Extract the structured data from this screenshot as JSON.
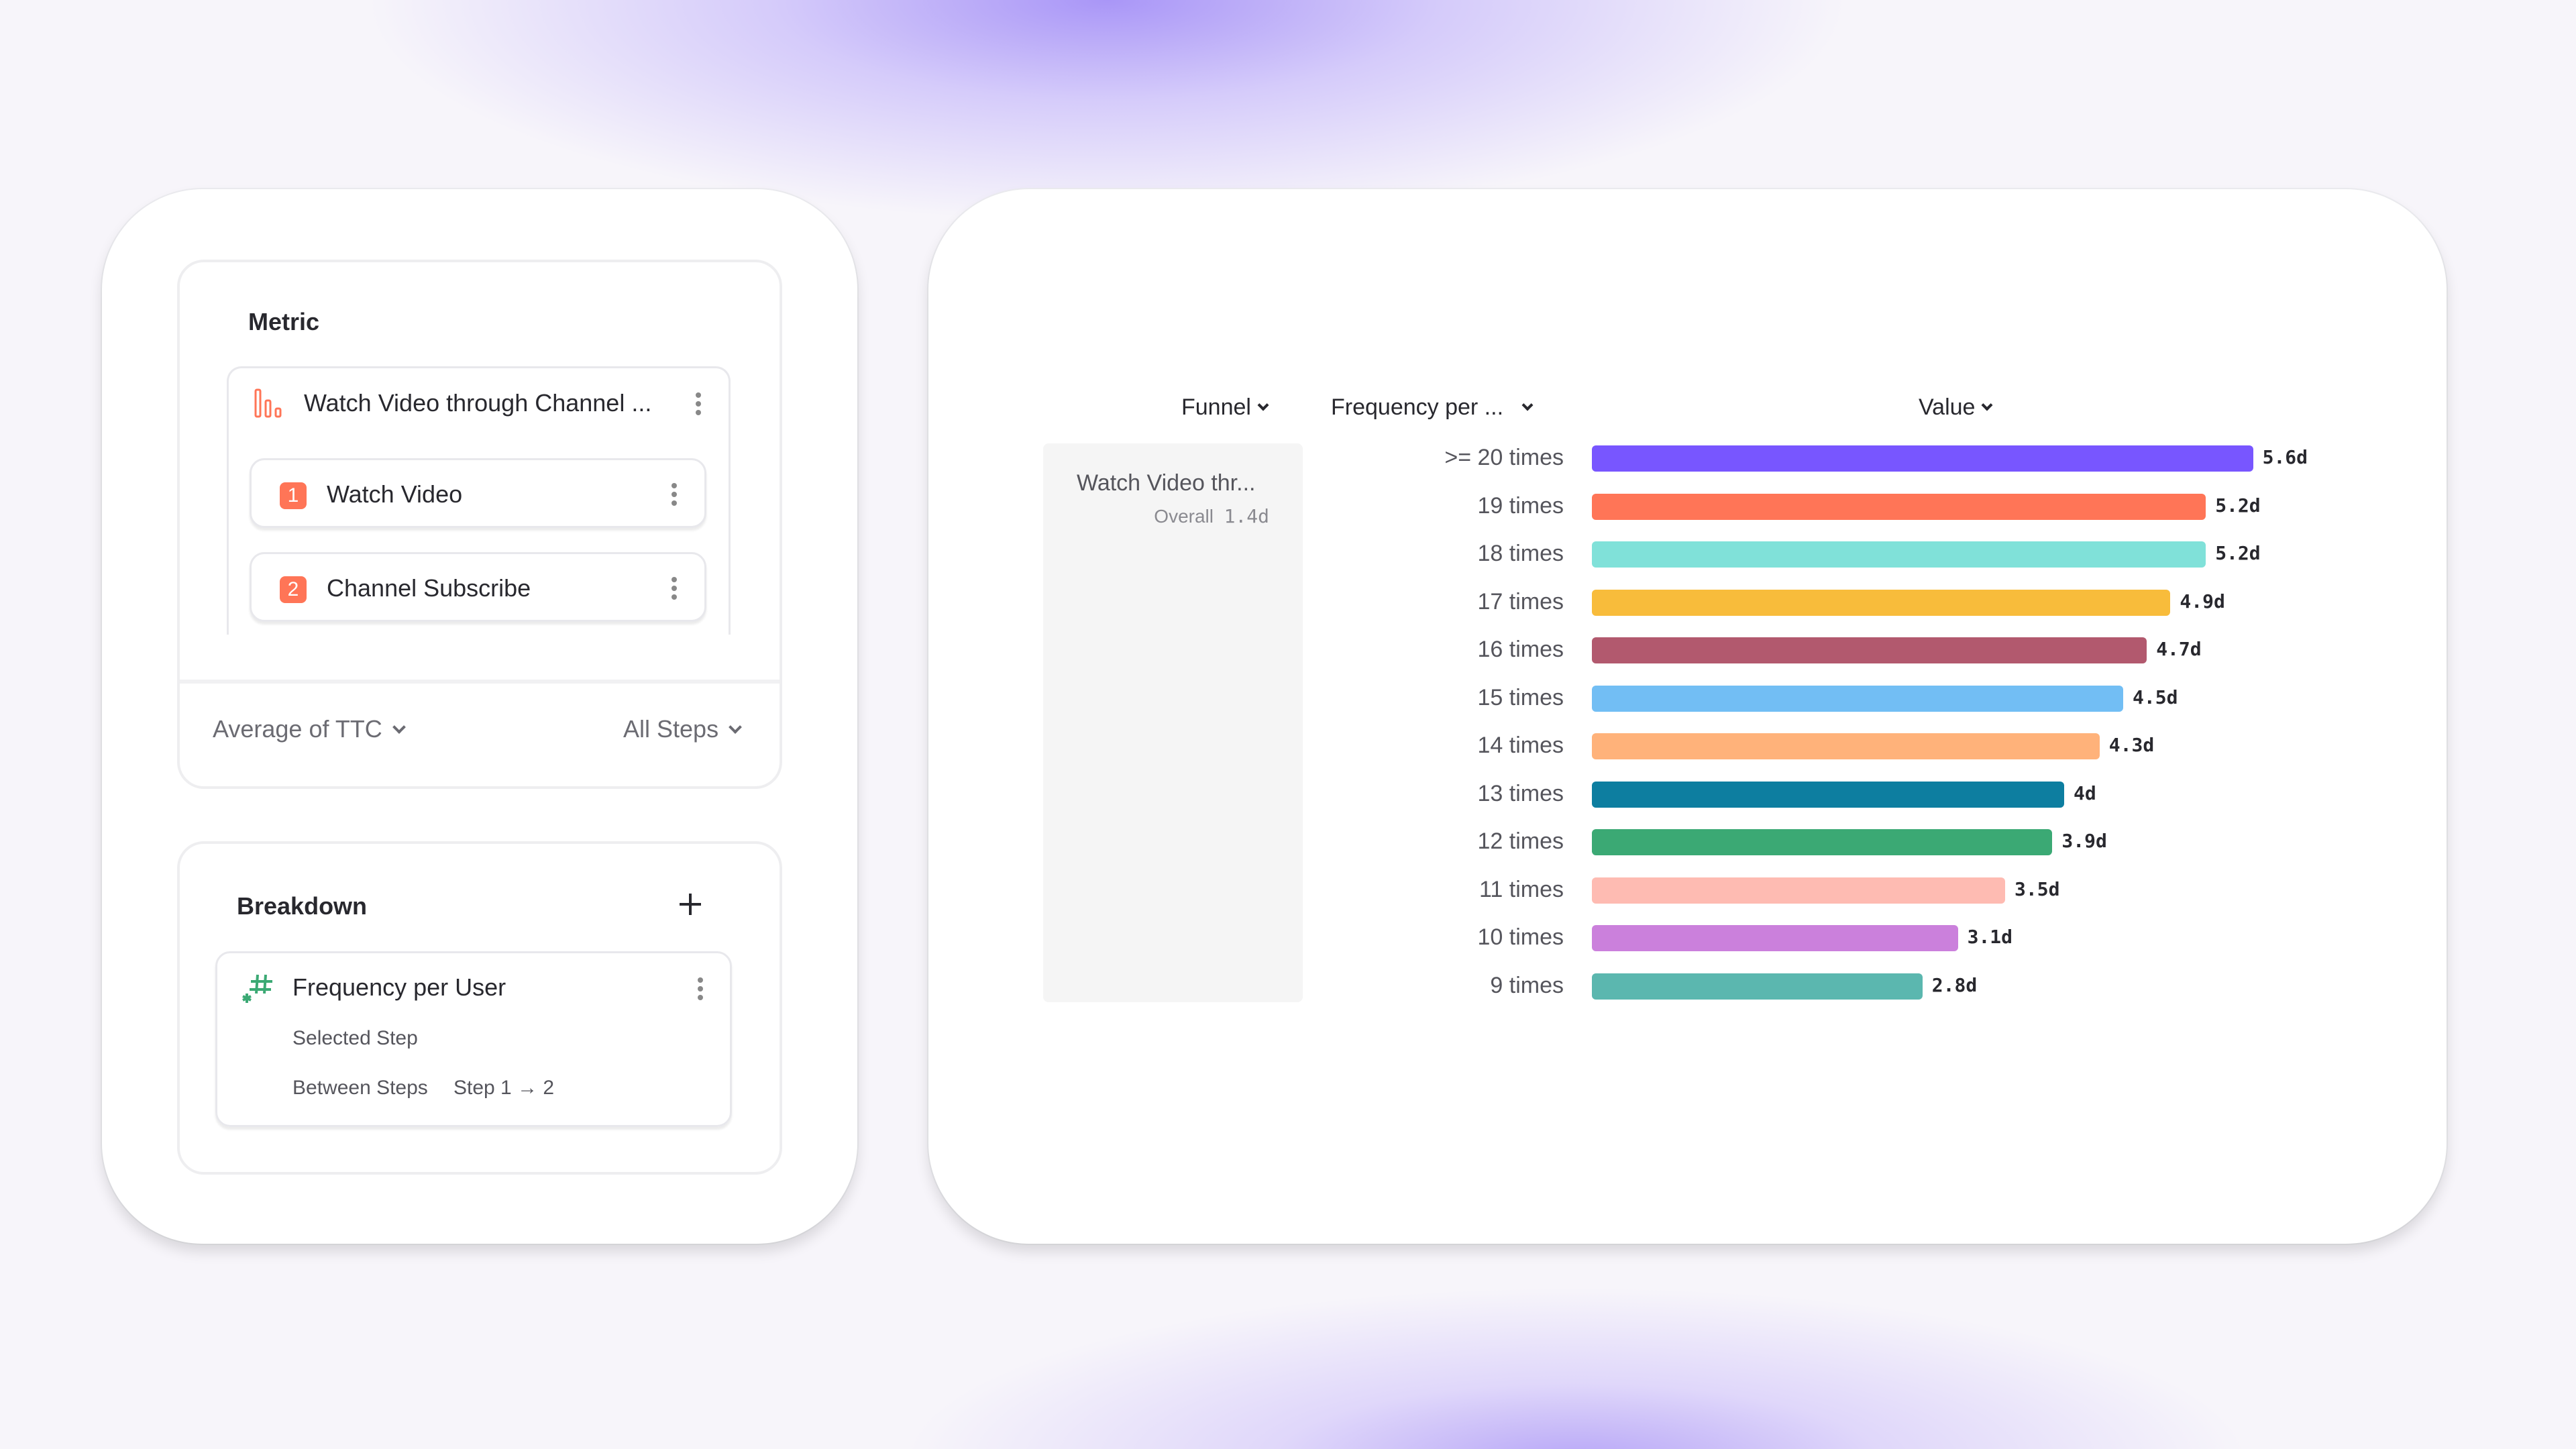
{
  "metric": {
    "title": "Metric",
    "funnel_name": "Watch Video through Channel ...",
    "steps": [
      {
        "num": "1",
        "label": "Watch Video"
      },
      {
        "num": "2",
        "label": "Channel Subscribe"
      }
    ],
    "aggregation": "Average of TTC",
    "step_scope": "All Steps"
  },
  "breakdown": {
    "title": "Breakdown",
    "property": "Frequency per User",
    "selected_step_label": "Selected Step",
    "between_steps_label": "Between Steps",
    "between_steps_value": "Step 1 → 2"
  },
  "table": {
    "headers": {
      "funnel": "Funnel",
      "frequency": "Frequency per ...",
      "value": "Value"
    },
    "funnel_cell": "Watch Video thr...",
    "overall_label": "Overall",
    "overall_value": "1.4d"
  },
  "chart_data": {
    "type": "bar",
    "orientation": "horizontal",
    "unit": "d",
    "categories": [
      ">= 20 times",
      "19 times",
      "18 times",
      "17 times",
      "16 times",
      "15 times",
      "14 times",
      "13 times",
      "12 times",
      "11 times",
      "10 times",
      "9 times"
    ],
    "values": [
      5.6,
      5.2,
      5.2,
      4.9,
      4.7,
      4.5,
      4.3,
      4.0,
      3.9,
      3.5,
      3.1,
      2.8
    ],
    "labels": [
      "5.6d",
      "5.2d",
      "5.2d",
      "4.9d",
      "4.7d",
      "4.5d",
      "4.3d",
      "4d",
      "3.9d",
      "3.5d",
      "3.1d",
      "2.8d"
    ],
    "colors": [
      "#7856ff",
      "#ff7557",
      "#80e1d9",
      "#f8bc3b",
      "#b2596e",
      "#72bef4",
      "#ffb27a",
      "#0d7ea0",
      "#3ba974",
      "#febbb2",
      "#cb80dc",
      "#5bb7af"
    ]
  },
  "colors": {
    "accent": "#ff7557",
    "breakdown_icon": "#3ba974"
  }
}
